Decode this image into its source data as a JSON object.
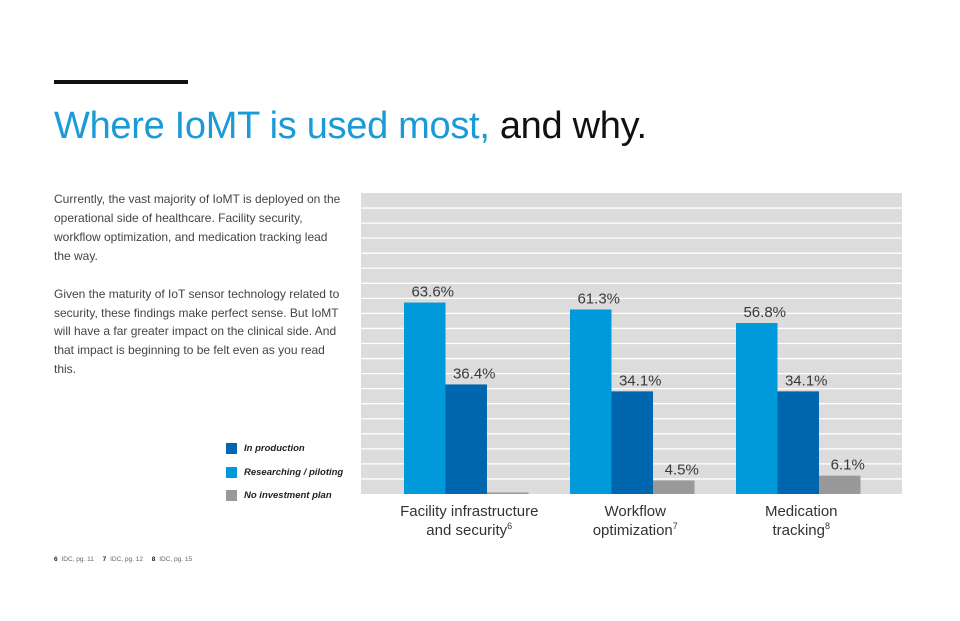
{
  "header": {
    "title_accent": "Where IoMT is used most,",
    "title_rest": " and why."
  },
  "body": {
    "paragraphs": [
      "Currently, the vast majority of IoMT is deployed on the operational side of healthcare. Facility security, workflow optimization, and medication tracking lead the way.",
      "Given the maturity of IoT sensor technology related to security, these findings make perfect sense. But IoMT will have a far greater impact on the clinical side. And that impact is beginning to be felt even as you read this."
    ]
  },
  "footnotes": [
    {
      "num": "6",
      "text": "IDC, pg. 11"
    },
    {
      "num": "7",
      "text": "IDC, pg. 12"
    },
    {
      "num": "8",
      "text": "IDC, pg. 15"
    }
  ],
  "colors": {
    "accent": "#1a9ad6",
    "researching": "#009ada",
    "production": "#0066ad",
    "no_plan": "#999999",
    "plot_bg": "#dcdcdc",
    "grid": "#ffffff"
  },
  "chart_data": {
    "type": "bar",
    "title": "",
    "xlabel": "",
    "ylabel": "",
    "ylim": [
      0,
      100
    ],
    "grid": true,
    "legend_position": "left",
    "categories": [
      {
        "line1": "Facility infrastructure",
        "line2": "and security",
        "sup": "6"
      },
      {
        "line1": "Workflow",
        "line2": "optimization",
        "sup": "7"
      },
      {
        "line1": "Medication",
        "line2": "tracking",
        "sup": "8"
      }
    ],
    "series": [
      {
        "name": "Researching / piloting",
        "color_key": "researching",
        "values": [
          63.6,
          61.3,
          56.8
        ],
        "labels": [
          "63.6%",
          "61.3%",
          "56.8%"
        ]
      },
      {
        "name": "In production",
        "color_key": "production",
        "values": [
          36.4,
          34.1,
          34.1
        ],
        "labels": [
          "36.4%",
          "34.1%",
          "34.1%"
        ]
      },
      {
        "name": "No investment plan",
        "color_key": "no_plan",
        "values": [
          0,
          4.5,
          6.1
        ],
        "labels": [
          "",
          "4.5%",
          "6.1%"
        ]
      }
    ],
    "legend": [
      {
        "name": "In production",
        "color_key": "production"
      },
      {
        "name": "Researching / piloting",
        "color_key": "researching"
      },
      {
        "name": "No investment plan",
        "color_key": "no_plan"
      }
    ]
  }
}
